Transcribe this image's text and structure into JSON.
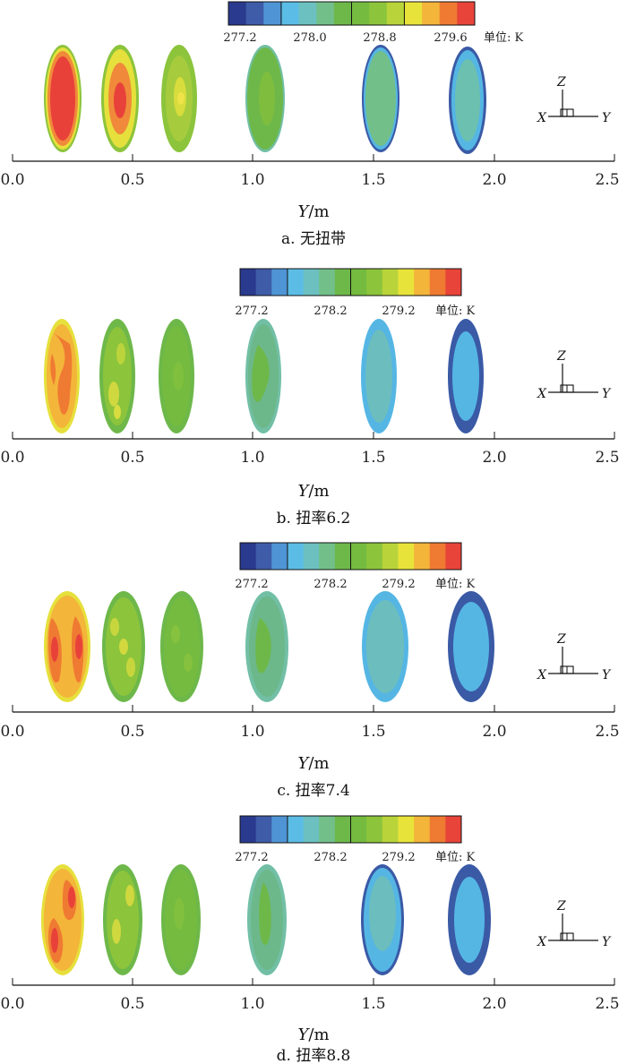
{
  "panels": [
    {
      "id": "a",
      "caption": "a. 无扭带",
      "colorbar_ticks": [
        "277.2",
        "278.0",
        "278.8",
        "279.6"
      ],
      "unit_label": "单位: K",
      "x_ticks": [
        "0.0",
        "0.5",
        "1.0",
        "1.5",
        "2.0",
        "2.5"
      ],
      "axis_title_var": "Y",
      "axis_title_unit": "/m",
      "triad": {
        "z": "Z",
        "x": "X",
        "y": "Y"
      }
    },
    {
      "id": "b",
      "caption": "b. 扭率6.2",
      "colorbar_ticks": [
        "277.2",
        "278.2",
        "279.2"
      ],
      "unit_label": "单位: K",
      "x_ticks": [
        "0.0",
        "0.5",
        "1.0",
        "1.5",
        "2.0",
        "2.5"
      ],
      "axis_title_var": "Y",
      "axis_title_unit": "/m",
      "triad": {
        "z": "Z",
        "x": "X",
        "y": "Y"
      }
    },
    {
      "id": "c",
      "caption": "c. 扭率7.4",
      "colorbar_ticks": [
        "277.2",
        "278.2",
        "279.2"
      ],
      "unit_label": "单位: K",
      "x_ticks": [
        "0.0",
        "0.5",
        "1.0",
        "1.5",
        "2.0",
        "2.5"
      ],
      "axis_title_var": "Y",
      "axis_title_unit": "/m",
      "triad": {
        "z": "Z",
        "x": "X",
        "y": "Y"
      }
    },
    {
      "id": "d",
      "caption": "d. 扭率8.8",
      "colorbar_ticks": [
        "277.2",
        "278.2",
        "279.2"
      ],
      "unit_label": "单位: K",
      "x_ticks": [
        "0.0",
        "0.5",
        "1.0",
        "1.5",
        "2.0",
        "2.5"
      ],
      "axis_title_var": "Y",
      "axis_title_unit": "/m",
      "triad": {
        "z": "Z",
        "x": "X",
        "y": "Y"
      }
    }
  ],
  "colorbar_colors": [
    "#2a3a8e",
    "#3f5ca8",
    "#4f95d5",
    "#5bbde6",
    "#6cc0c0",
    "#72bf8a",
    "#6eb84a",
    "#74bb3f",
    "#8cc43c",
    "#b8d43a",
    "#e8e33a",
    "#f3b53a",
    "#ef7a32",
    "#e8443a"
  ],
  "colors": {
    "deep_blue": "#3a5aa6",
    "blue": "#55b6e4",
    "teal": "#72bfa5",
    "green": "#6eb84a",
    "yellow_green": "#a6cc3e",
    "yellow": "#e6e03c",
    "orange": "#f08a3a",
    "red": "#e8413a"
  }
}
